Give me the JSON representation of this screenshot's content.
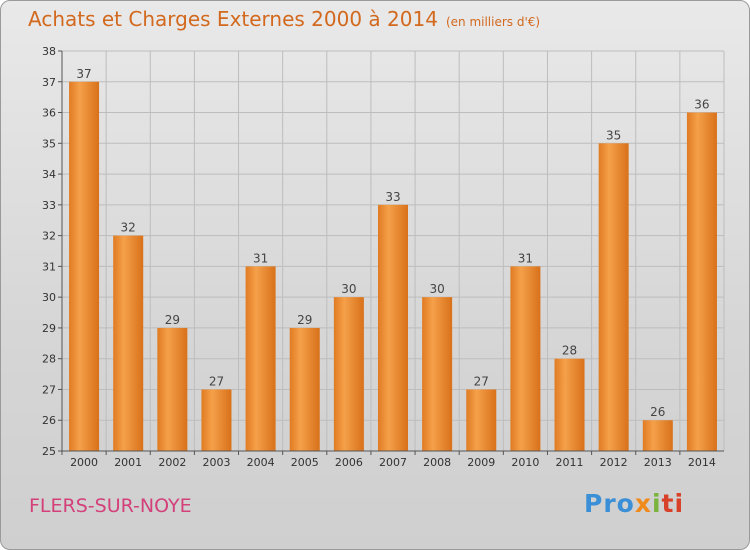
{
  "title": "Achats et Charges Externes 2000 à 2014",
  "unit": "(en milliers d'€)",
  "commune": "FLERS-SUR-NOYE",
  "logo": {
    "text": "Proxiti",
    "parts": [
      "Pro",
      "x",
      "i",
      "ti"
    ]
  },
  "colors": {
    "bar": "#f28c28",
    "bar_dark": "#d9731a",
    "title": "#d2691e",
    "commune": "#d3407a",
    "grid": "#bdbdbd"
  },
  "chart_data": {
    "type": "bar",
    "title": "Achats et Charges Externes 2000 à 2014",
    "subtitle": "(en milliers d'€)",
    "xlabel": "",
    "ylabel": "",
    "categories": [
      "2000",
      "2001",
      "2002",
      "2003",
      "2004",
      "2005",
      "2006",
      "2007",
      "2008",
      "2009",
      "2010",
      "2011",
      "2012",
      "2013",
      "2014"
    ],
    "values": [
      37,
      32,
      29,
      27,
      31,
      29,
      30,
      33,
      30,
      27,
      31,
      28,
      35,
      26,
      36
    ],
    "ylim": [
      25,
      38
    ],
    "yticks": [
      25,
      26,
      27,
      28,
      29,
      30,
      31,
      32,
      33,
      34,
      35,
      36,
      37,
      38
    ],
    "grid": true,
    "legend": "none"
  }
}
